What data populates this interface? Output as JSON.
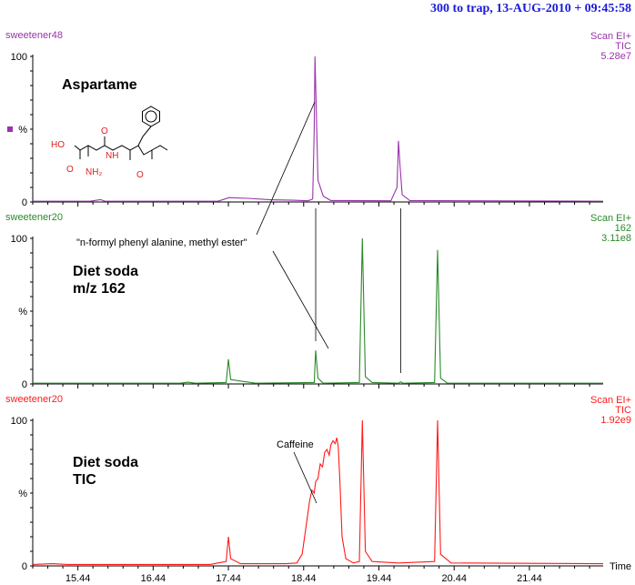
{
  "header": {
    "title": "300 to trap,  13-AUG-2010 + 09:45:58"
  },
  "x_axis_label": "Time",
  "chart_data": [
    {
      "type": "line",
      "panel_name": "sweetener48",
      "title": "Aspartame",
      "scan_info": [
        "Scan EI+",
        "TIC",
        "5.28e7"
      ],
      "ylabel": "%",
      "color": "#9933aa",
      "xlim": [
        14.84,
        22.42
      ],
      "ylim": [
        0,
        100
      ],
      "x_ticks": [
        "15.44",
        "16.44",
        "17.44",
        "18.44",
        "19.44",
        "20.44",
        "21.44"
      ],
      "y_ticks": [
        "100",
        "%",
        "0"
      ],
      "series": [
        {
          "values": [
            [
              14.84,
              0.5
            ],
            [
              15.6,
              0.5
            ],
            [
              15.74,
              1.6
            ],
            [
              15.8,
              0.5
            ],
            [
              17.3,
              0.5
            ],
            [
              17.45,
              3
            ],
            [
              17.7,
              2.5
            ],
            [
              18.0,
              1.5
            ],
            [
              18.3,
              1.2
            ],
            [
              18.5,
              0.8
            ],
            [
              18.56,
              2
            ],
            [
              18.58,
              50
            ],
            [
              18.59,
              100
            ],
            [
              18.61,
              60
            ],
            [
              18.63,
              15
            ],
            [
              18.7,
              4
            ],
            [
              18.8,
              1
            ],
            [
              19.6,
              0.8
            ],
            [
              19.68,
              10
            ],
            [
              19.7,
              42
            ],
            [
              19.72,
              25
            ],
            [
              19.75,
              5
            ],
            [
              19.85,
              1
            ],
            [
              22.42,
              0.5
            ]
          ]
        }
      ],
      "annotations": []
    },
    {
      "type": "line",
      "panel_name": "sweetener20",
      "title": "Diet soda\nm/z 162",
      "scan_info": [
        "Scan EI+",
        "162",
        "3.11e8"
      ],
      "ylabel": "%",
      "color": "#2a8a2a",
      "xlim": [
        14.84,
        22.42
      ],
      "ylim": [
        0,
        100
      ],
      "x_ticks": [
        "15.44",
        "16.44",
        "17.44",
        "18.44",
        "19.44",
        "20.44",
        "21.44"
      ],
      "y_ticks": [
        "100",
        "%",
        "0"
      ],
      "series": [
        {
          "values": [
            [
              14.84,
              0.5
            ],
            [
              16.8,
              0.5
            ],
            [
              16.9,
              1.2
            ],
            [
              17.0,
              0.5
            ],
            [
              17.41,
              1
            ],
            [
              17.44,
              17
            ],
            [
              17.47,
              3
            ],
            [
              17.8,
              0.5
            ],
            [
              18.58,
              1
            ],
            [
              18.6,
              23
            ],
            [
              18.63,
              4
            ],
            [
              18.7,
              0.5
            ],
            [
              19.18,
              1
            ],
            [
              19.22,
              100
            ],
            [
              19.26,
              5
            ],
            [
              19.35,
              1
            ],
            [
              19.7,
              0.5
            ],
            [
              19.73,
              1.5
            ],
            [
              19.76,
              0.5
            ],
            [
              20.18,
              1
            ],
            [
              20.22,
              92
            ],
            [
              20.26,
              4
            ],
            [
              20.35,
              0.5
            ],
            [
              22.42,
              0.5
            ]
          ]
        }
      ],
      "annotations": [
        "\"n-formyl phenyl alanine, methyl ester\""
      ]
    },
    {
      "type": "line",
      "panel_name": "sweetener20",
      "title": "Diet soda\nTIC",
      "scan_info": [
        "Scan EI+",
        "TIC",
        "1.92e9"
      ],
      "ylabel": "%",
      "color": "#ff1a1a",
      "xlim": [
        14.84,
        22.42
      ],
      "ylim": [
        0,
        100
      ],
      "x_ticks": [
        "15.44",
        "16.44",
        "17.44",
        "18.44",
        "19.44",
        "20.44",
        "21.44"
      ],
      "y_ticks": [
        "100",
        "%",
        "0"
      ],
      "series": [
        {
          "values": [
            [
              14.84,
              1
            ],
            [
              15.1,
              1.5
            ],
            [
              15.3,
              1
            ],
            [
              17.2,
              1
            ],
            [
              17.3,
              2
            ],
            [
              17.41,
              3
            ],
            [
              17.44,
              20
            ],
            [
              17.47,
              5
            ],
            [
              17.6,
              1.5
            ],
            [
              18.2,
              1.5
            ],
            [
              18.35,
              2
            ],
            [
              18.42,
              8
            ],
            [
              18.48,
              30
            ],
            [
              18.52,
              45
            ],
            [
              18.55,
              52
            ],
            [
              18.58,
              50
            ],
            [
              18.6,
              58
            ],
            [
              18.63,
              60
            ],
            [
              18.66,
              70
            ],
            [
              18.69,
              68
            ],
            [
              18.72,
              78
            ],
            [
              18.75,
              80
            ],
            [
              18.78,
              76
            ],
            [
              18.8,
              83
            ],
            [
              18.83,
              86
            ],
            [
              18.86,
              84
            ],
            [
              18.88,
              88
            ],
            [
              18.9,
              82
            ],
            [
              18.92,
              60
            ],
            [
              18.95,
              20
            ],
            [
              19.0,
              5
            ],
            [
              19.1,
              2
            ],
            [
              19.18,
              3
            ],
            [
              19.22,
              100
            ],
            [
              19.26,
              10
            ],
            [
              19.35,
              3
            ],
            [
              19.7,
              2
            ],
            [
              20.18,
              3
            ],
            [
              20.22,
              100
            ],
            [
              20.26,
              8
            ],
            [
              20.4,
              2
            ],
            [
              22.42,
              1.5
            ]
          ]
        }
      ],
      "annotations": [
        "Caffeine"
      ]
    }
  ],
  "structure_labels": [
    "HO",
    "O",
    "NH",
    "NH₂",
    "O",
    "O"
  ]
}
